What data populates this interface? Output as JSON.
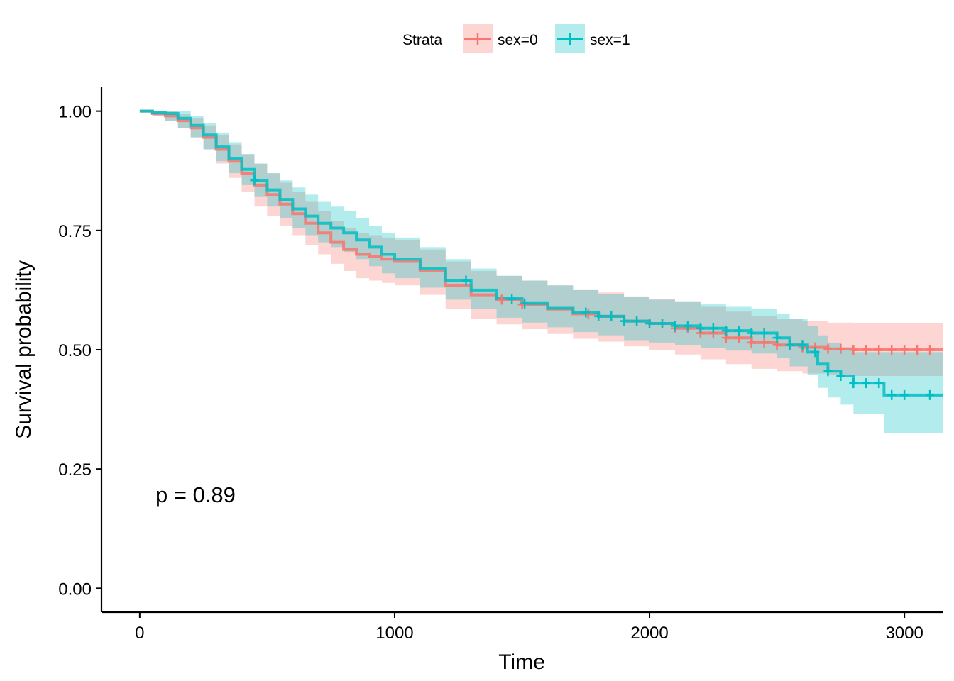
{
  "chart_data": {
    "type": "line",
    "xlabel": "Time",
    "ylabel": "Survival probability",
    "xlim": [
      -150,
      3150
    ],
    "ylim": [
      -0.05,
      1.05
    ],
    "xticks": [
      0,
      1000,
      2000,
      3000
    ],
    "xtick_labels": [
      "0",
      "1000",
      "2000",
      "3000"
    ],
    "yticks": [
      0,
      0.25,
      0.5,
      0.75,
      1.0
    ],
    "ytick_labels": [
      "0.00",
      "0.25",
      "0.50",
      "0.75",
      "1.00"
    ],
    "grid": false,
    "legend_position": "top",
    "legend_title": "Strata",
    "annotation": "p = 0.89",
    "series": [
      {
        "name": "sex=0",
        "color": "#F8766D",
        "band_color": "#F8766D",
        "x": [
          0,
          50,
          100,
          150,
          200,
          250,
          300,
          350,
          400,
          450,
          500,
          550,
          600,
          650,
          700,
          750,
          800,
          850,
          900,
          950,
          1000,
          1100,
          1200,
          1300,
          1400,
          1500,
          1600,
          1700,
          1800,
          1900,
          2000,
          2100,
          2200,
          2300,
          2400,
          2500,
          2600,
          2700,
          2800,
          2900,
          3000,
          3150
        ],
        "y": [
          1.0,
          0.995,
          0.99,
          0.98,
          0.965,
          0.945,
          0.92,
          0.895,
          0.87,
          0.845,
          0.825,
          0.805,
          0.785,
          0.765,
          0.745,
          0.725,
          0.71,
          0.7,
          0.695,
          0.69,
          0.685,
          0.665,
          0.635,
          0.615,
          0.605,
          0.595,
          0.585,
          0.575,
          0.57,
          0.56,
          0.555,
          0.545,
          0.535,
          0.525,
          0.515,
          0.51,
          0.505,
          0.502,
          0.5,
          0.5,
          0.5,
          0.5
        ],
        "lower": [
          1.0,
          0.99,
          0.98,
          0.965,
          0.945,
          0.92,
          0.89,
          0.86,
          0.83,
          0.8,
          0.78,
          0.76,
          0.74,
          0.72,
          0.7,
          0.68,
          0.665,
          0.65,
          0.645,
          0.64,
          0.635,
          0.615,
          0.585,
          0.565,
          0.553,
          0.543,
          0.533,
          0.523,
          0.517,
          0.507,
          0.5,
          0.49,
          0.48,
          0.47,
          0.46,
          0.455,
          0.45,
          0.447,
          0.445,
          0.445,
          0.445,
          0.445
        ],
        "upper": [
          1.0,
          1.0,
          1.0,
          0.995,
          0.985,
          0.97,
          0.95,
          0.93,
          0.91,
          0.89,
          0.87,
          0.85,
          0.83,
          0.81,
          0.79,
          0.77,
          0.755,
          0.745,
          0.74,
          0.735,
          0.73,
          0.71,
          0.685,
          0.665,
          0.655,
          0.645,
          0.635,
          0.625,
          0.62,
          0.612,
          0.607,
          0.6,
          0.59,
          0.58,
          0.57,
          0.565,
          0.56,
          0.557,
          0.555,
          0.555,
          0.555,
          0.555
        ],
        "censor_x": [
          1420,
          1500,
          1760,
          1850,
          1900,
          1950,
          2000,
          2050,
          2100,
          2150,
          2200,
          2250,
          2300,
          2350,
          2400,
          2450,
          2500,
          2550,
          2600,
          2650,
          2700,
          2750,
          2800,
          2850,
          2900,
          2950,
          3000,
          3050,
          3100
        ]
      },
      {
        "name": "sex=1",
        "color": "#00BFC4",
        "band_color": "#00BFC4",
        "x": [
          0,
          50,
          100,
          150,
          200,
          250,
          300,
          350,
          400,
          450,
          500,
          550,
          600,
          650,
          700,
          750,
          800,
          850,
          900,
          950,
          1000,
          1100,
          1200,
          1300,
          1400,
          1500,
          1600,
          1700,
          1800,
          1900,
          2000,
          2100,
          2200,
          2300,
          2400,
          2500,
          2550,
          2620,
          2660,
          2700,
          2750,
          2800,
          2850,
          2920,
          2950,
          3000,
          3150
        ],
        "y": [
          1.0,
          0.998,
          0.995,
          0.985,
          0.97,
          0.95,
          0.925,
          0.9,
          0.878,
          0.855,
          0.835,
          0.815,
          0.795,
          0.78,
          0.765,
          0.755,
          0.745,
          0.73,
          0.715,
          0.7,
          0.69,
          0.67,
          0.645,
          0.625,
          0.607,
          0.597,
          0.587,
          0.578,
          0.57,
          0.56,
          0.555,
          0.55,
          0.545,
          0.54,
          0.535,
          0.525,
          0.51,
          0.495,
          0.47,
          0.455,
          0.445,
          0.43,
          0.43,
          0.405,
          0.405,
          0.405,
          0.405
        ],
        "lower": [
          1.0,
          0.99,
          0.98,
          0.965,
          0.945,
          0.92,
          0.895,
          0.87,
          0.845,
          0.82,
          0.8,
          0.775,
          0.755,
          0.74,
          0.725,
          0.715,
          0.705,
          0.69,
          0.675,
          0.66,
          0.65,
          0.63,
          0.605,
          0.585,
          0.567,
          0.557,
          0.547,
          0.537,
          0.53,
          0.52,
          0.515,
          0.51,
          0.503,
          0.498,
          0.492,
          0.482,
          0.465,
          0.448,
          0.42,
          0.4,
          0.385,
          0.365,
          0.365,
          0.325,
          0.325,
          0.325,
          0.325
        ],
        "upper": [
          1.0,
          1.0,
          1.0,
          1.0,
          0.99,
          0.975,
          0.955,
          0.935,
          0.91,
          0.89,
          0.87,
          0.855,
          0.84,
          0.825,
          0.81,
          0.8,
          0.79,
          0.775,
          0.76,
          0.745,
          0.735,
          0.715,
          0.69,
          0.67,
          0.655,
          0.645,
          0.635,
          0.625,
          0.617,
          0.61,
          0.605,
          0.6,
          0.595,
          0.59,
          0.585,
          0.575,
          0.565,
          0.55,
          0.53,
          0.515,
          0.505,
          0.495,
          0.495,
          0.495,
          0.495,
          0.495,
          0.495
        ],
        "censor_x": [
          450,
          1280,
          1460,
          1510,
          1750,
          1800,
          1850,
          1900,
          1950,
          2000,
          2050,
          2100,
          2150,
          2200,
          2250,
          2300,
          2350,
          2400,
          2450,
          2500,
          2550,
          2600,
          2650,
          2700,
          2750,
          2800,
          2850,
          2900,
          2950,
          3000,
          3100
        ]
      }
    ]
  }
}
